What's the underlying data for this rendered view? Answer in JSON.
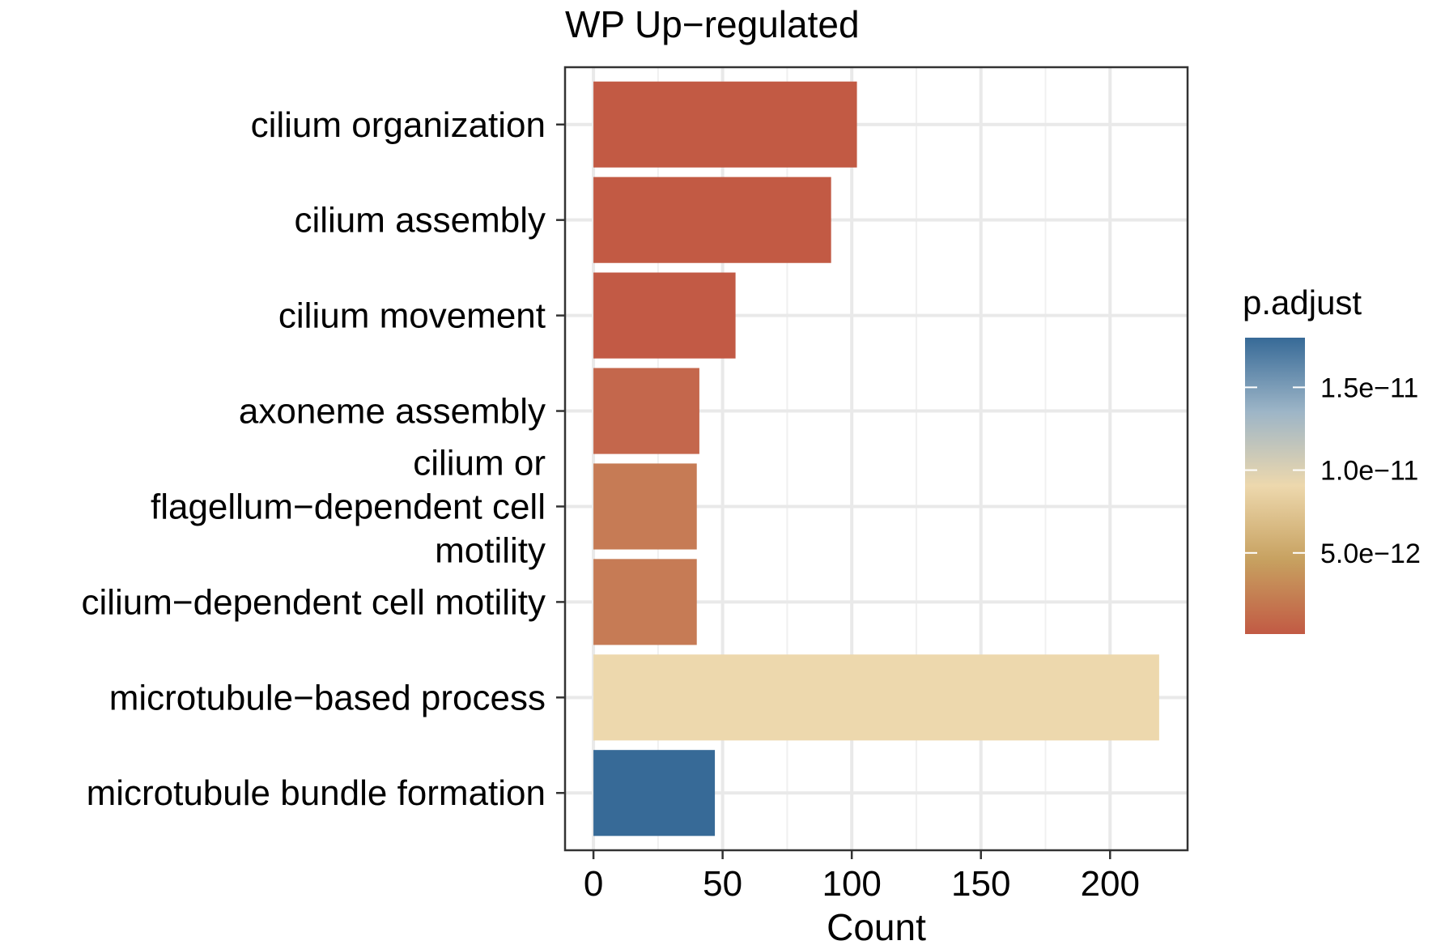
{
  "chart_data": {
    "type": "bar",
    "orientation": "horizontal",
    "title": "WP Up−regulated",
    "xlabel": "Count",
    "ylabel": "",
    "xlim": [
      -11,
      230
    ],
    "xticks": [
      0,
      50,
      100,
      150,
      200
    ],
    "grid": true,
    "categories": [
      "cilium organization",
      "cilium assembly",
      "cilium movement",
      "axoneme assembly",
      "cilium or flagellum−dependent cell motility",
      "cilium−dependent cell motility",
      "microtubule−based process",
      "microtubule bundle formation"
    ],
    "category_label_lines": [
      [
        "cilium organization"
      ],
      [
        "cilium assembly"
      ],
      [
        "cilium movement"
      ],
      [
        "axoneme assembly"
      ],
      [
        "cilium or",
        "flagellum−dependent cell",
        "motility"
      ],
      [
        "cilium−dependent cell motility"
      ],
      [
        "microtubule−based process"
      ],
      [
        "microtubule bundle formation"
      ]
    ],
    "values": [
      102,
      92,
      55,
      41,
      40,
      40,
      219,
      47
    ],
    "p_adjust": [
      1e-13,
      2e-13,
      4e-13,
      1.6e-12,
      2.1e-12,
      2.1e-12,
      1e-11,
      1.8e-11
    ],
    "bar_colors": [
      "#C25A44",
      "#C25A44",
      "#C25A45",
      "#C4674C",
      "#C67B55",
      "#C67B55",
      "#EDD8AD",
      "#376A97"
    ],
    "legend": {
      "title": "p.adjust",
      "position": "right",
      "ticks": [
        {
          "label": "1.5e−11",
          "value": 1.5e-11
        },
        {
          "label": "1.0e−11",
          "value": 1e-11
        },
        {
          "label": "5.0e−12",
          "value": 5e-12
        }
      ],
      "range": [
        1e-13,
        1.8e-11
      ],
      "gradient": [
        "#C25A44",
        "#C7A160",
        "#EDD8AD",
        "#9DB5C7",
        "#376A97"
      ]
    }
  }
}
